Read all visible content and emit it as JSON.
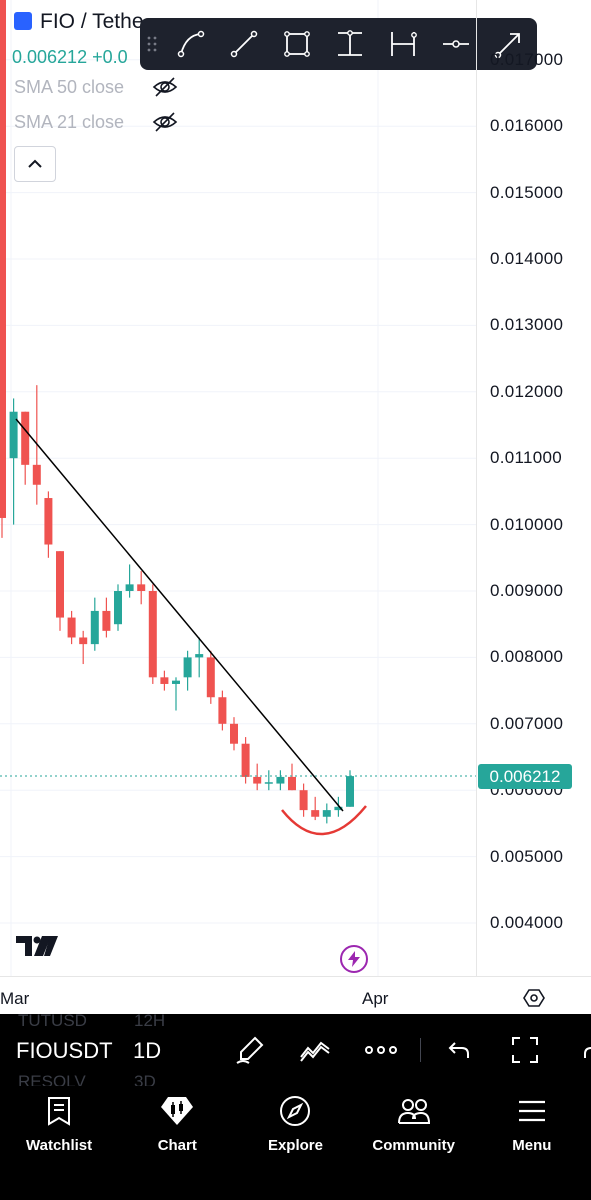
{
  "header": {
    "symbol_title": "FIO / Tethe",
    "price_line": "0.006212 +0.0"
  },
  "indicators": [
    {
      "label": "SMA 50 close",
      "hidden": true
    },
    {
      "label": "SMA 21 close",
      "hidden": true
    }
  ],
  "drawing_toolbar": {
    "tools": [
      "curve-tool",
      "line-tool",
      "rectangle-tool",
      "vertical-measure-tool",
      "horizontal-measure-tool",
      "horizontal-ray-tool",
      "arrow-tool"
    ]
  },
  "price_scale": {
    "labels": [
      "0.017000",
      "0.016000",
      "0.015000",
      "0.014000",
      "0.013000",
      "0.012000",
      "0.011000",
      "0.010000",
      "0.009000",
      "0.008000",
      "0.007000",
      "0.006000",
      "0.005000",
      "0.004000"
    ],
    "last_price": "0.006212",
    "last_price_color": "#26a69a"
  },
  "time_axis": {
    "labels": [
      "Mar",
      "Apr"
    ]
  },
  "chart_data": {
    "type": "candlestick",
    "up_color": "#26a69a",
    "down_color": "#ef5350",
    "ylim": [
      0.0035,
      0.0176
    ],
    "last_price": 0.006212,
    "candles": [
      {
        "o": 0.0183,
        "h": 0.0185,
        "l": 0.0098,
        "c": 0.0101
      },
      {
        "o": 0.011,
        "h": 0.0119,
        "l": 0.01,
        "c": 0.0117
      },
      {
        "o": 0.0117,
        "h": 0.0117,
        "l": 0.0106,
        "c": 0.0109
      },
      {
        "o": 0.0109,
        "h": 0.0121,
        "l": 0.0103,
        "c": 0.0106
      },
      {
        "o": 0.0104,
        "h": 0.0105,
        "l": 0.0095,
        "c": 0.0097
      },
      {
        "o": 0.0096,
        "h": 0.0096,
        "l": 0.0084,
        "c": 0.0086
      },
      {
        "o": 0.0086,
        "h": 0.0087,
        "l": 0.0082,
        "c": 0.0083
      },
      {
        "o": 0.0083,
        "h": 0.0084,
        "l": 0.0079,
        "c": 0.0082
      },
      {
        "o": 0.0082,
        "h": 0.0089,
        "l": 0.0081,
        "c": 0.0087
      },
      {
        "o": 0.0087,
        "h": 0.0089,
        "l": 0.0083,
        "c": 0.0084
      },
      {
        "o": 0.0085,
        "h": 0.0091,
        "l": 0.0084,
        "c": 0.009
      },
      {
        "o": 0.009,
        "h": 0.0094,
        "l": 0.0089,
        "c": 0.0091
      },
      {
        "o": 0.0091,
        "h": 0.0093,
        "l": 0.0088,
        "c": 0.009
      },
      {
        "o": 0.009,
        "h": 0.0091,
        "l": 0.0076,
        "c": 0.0077
      },
      {
        "o": 0.0077,
        "h": 0.0078,
        "l": 0.0075,
        "c": 0.0076
      },
      {
        "o": 0.0076,
        "h": 0.0077,
        "l": 0.0072,
        "c": 0.00765
      },
      {
        "o": 0.0077,
        "h": 0.0081,
        "l": 0.0075,
        "c": 0.008
      },
      {
        "o": 0.008,
        "h": 0.0083,
        "l": 0.0077,
        "c": 0.00805
      },
      {
        "o": 0.008,
        "h": 0.0081,
        "l": 0.0073,
        "c": 0.0074
      },
      {
        "o": 0.0074,
        "h": 0.0075,
        "l": 0.0069,
        "c": 0.007
      },
      {
        "o": 0.007,
        "h": 0.0071,
        "l": 0.0066,
        "c": 0.0067
      },
      {
        "o": 0.0067,
        "h": 0.0068,
        "l": 0.0061,
        "c": 0.0062
      },
      {
        "o": 0.0062,
        "h": 0.0064,
        "l": 0.006,
        "c": 0.0061
      },
      {
        "o": 0.0061,
        "h": 0.0063,
        "l": 0.006,
        "c": 0.00612
      },
      {
        "o": 0.0061,
        "h": 0.0063,
        "l": 0.006,
        "c": 0.0062
      },
      {
        "o": 0.0062,
        "h": 0.0064,
        "l": 0.006,
        "c": 0.006
      },
      {
        "o": 0.006,
        "h": 0.0061,
        "l": 0.0056,
        "c": 0.0057
      },
      {
        "o": 0.0057,
        "h": 0.0059,
        "l": 0.00555,
        "c": 0.0056
      },
      {
        "o": 0.0056,
        "h": 0.0058,
        "l": 0.0055,
        "c": 0.0057
      },
      {
        "o": 0.0057,
        "h": 0.0059,
        "l": 0.0056,
        "c": 0.00575
      },
      {
        "o": 0.00575,
        "h": 0.0063,
        "l": 0.00575,
        "c": 0.006212
      }
    ]
  },
  "symbol_bar": {
    "ghost_top": [
      "TUTUSD",
      "12H"
    ],
    "ghost_bottom": [
      "RESOLV",
      "3D"
    ],
    "symbol": "FIOUSDT",
    "interval": "1D"
  },
  "bottom_nav": [
    {
      "label": "Watchlist",
      "icon": "watchlist-icon"
    },
    {
      "label": "Chart",
      "icon": "chart-icon"
    },
    {
      "label": "Explore",
      "icon": "compass-icon"
    },
    {
      "label": "Community",
      "icon": "community-icon"
    },
    {
      "label": "Menu",
      "icon": "menu-icon"
    }
  ]
}
